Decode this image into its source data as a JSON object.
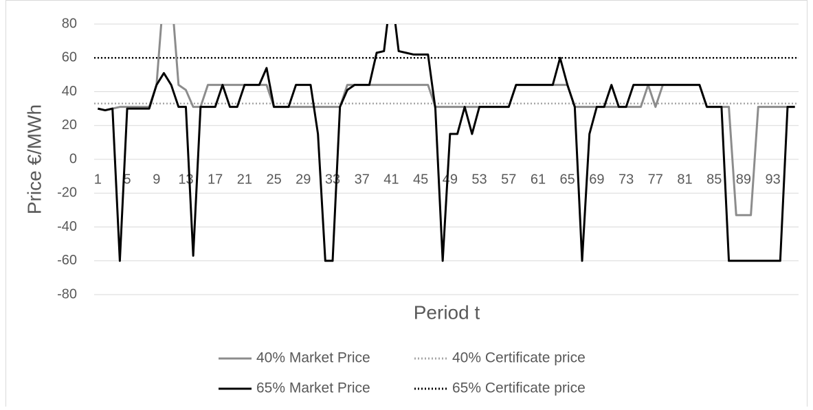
{
  "chart_data": {
    "type": "line",
    "x_label": "Period t",
    "y_label": "Price €/MWh",
    "categories": [
      "1",
      null,
      null,
      null,
      "5",
      null,
      null,
      null,
      "9",
      null,
      null,
      null,
      "13",
      null,
      null,
      null,
      "17",
      null,
      null,
      null,
      "21",
      null,
      null,
      null,
      "25",
      null,
      null,
      null,
      "29",
      null,
      null,
      null,
      "33",
      null,
      null,
      null,
      "37",
      null,
      null,
      null,
      "41",
      null,
      null,
      null,
      "45",
      null,
      null,
      null,
      "49",
      null,
      null,
      null,
      "53",
      null,
      null,
      null,
      "57",
      null,
      null,
      null,
      "61",
      null,
      null,
      null,
      "65",
      null,
      null,
      null,
      "69",
      null,
      null,
      null,
      "73",
      null,
      null,
      null,
      "77",
      null,
      null,
      null,
      "81",
      null,
      null,
      null,
      "85",
      null,
      null,
      null,
      "89",
      null,
      null,
      null,
      "93",
      null,
      null,
      null
    ],
    "ylim": [
      -80,
      80
    ],
    "yticks": [
      -80,
      -60,
      -40,
      -20,
      0,
      20,
      40,
      60,
      80
    ],
    "grid": true,
    "legend": "bottom",
    "series": [
      {
        "name": "40% Market Price",
        "color": "#8c8c8c",
        "style": "solid",
        "values": [
          30,
          29,
          30,
          31,
          31,
          31,
          31,
          31,
          44,
          100,
          100,
          44,
          41,
          31,
          31,
          44,
          44,
          44,
          44,
          44,
          44,
          44,
          44,
          44,
          31,
          31,
          31,
          31,
          31,
          31,
          31,
          31,
          31,
          31,
          44,
          44,
          44,
          44,
          44,
          44,
          44,
          44,
          44,
          44,
          44,
          44,
          31,
          31,
          31,
          31,
          31,
          31,
          31,
          31,
          31,
          31,
          31,
          44,
          44,
          44,
          44,
          44,
          44,
          44,
          44,
          31,
          31,
          31,
          31,
          31,
          31,
          31,
          31,
          31,
          31,
          44,
          31,
          44,
          44,
          44,
          44,
          44,
          44,
          31,
          31,
          31,
          31,
          -33,
          -33,
          -33,
          31,
          31,
          31,
          31,
          31,
          31
        ]
      },
      {
        "name": "40% Certificate price",
        "color": "#a6a6a6",
        "style": "dotted",
        "value": 33
      },
      {
        "name": "65% Market Price",
        "color": "#000000",
        "style": "solid",
        "values": [
          30,
          29,
          30,
          -60,
          30,
          30,
          30,
          30,
          44,
          51,
          44,
          31,
          31,
          -57,
          31,
          31,
          31,
          44,
          31,
          31,
          44,
          44,
          44,
          54,
          31,
          31,
          31,
          44,
          44,
          44,
          15,
          -60,
          -60,
          31,
          41,
          44,
          44,
          44,
          63,
          64,
          100,
          64,
          63,
          62,
          62,
          62,
          30,
          -60,
          15,
          15,
          31,
          15,
          31,
          31,
          31,
          31,
          31,
          44,
          44,
          44,
          44,
          44,
          44,
          60,
          44,
          31,
          -60,
          15,
          31,
          31,
          44,
          31,
          31,
          44,
          44,
          44,
          44,
          44,
          44,
          44,
          44,
          44,
          44,
          31,
          31,
          31,
          -60,
          -60,
          -60,
          -60,
          -60,
          -60,
          -60,
          -60,
          31,
          31
        ]
      },
      {
        "name": "65% Certificate price",
        "color": "#000000",
        "style": "dotted",
        "value": 60
      }
    ]
  }
}
